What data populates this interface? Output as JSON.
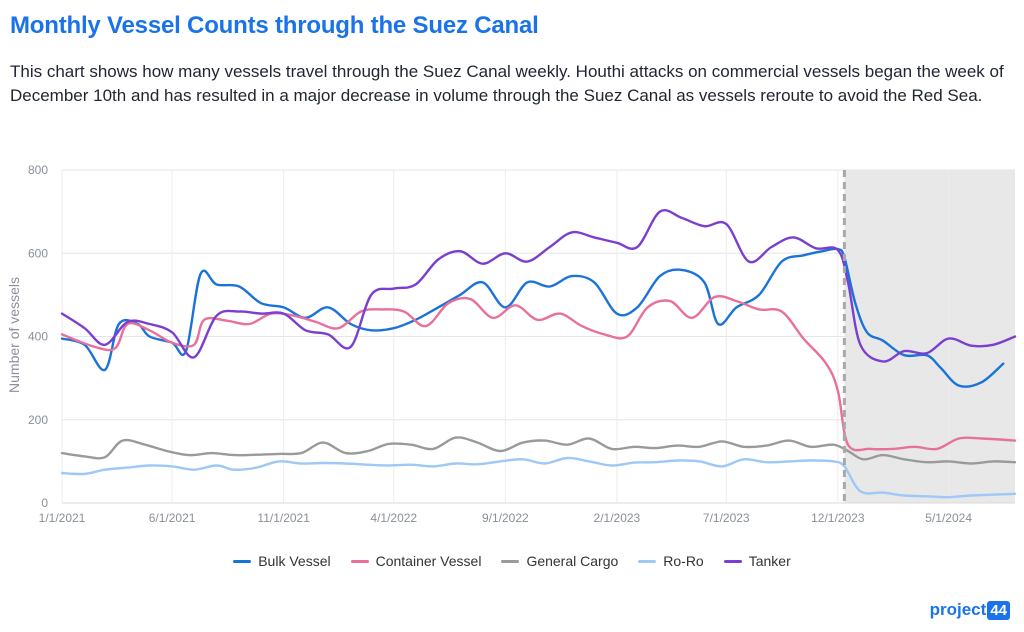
{
  "header": {
    "title": "Monthly Vessel Counts through the Suez Canal",
    "subtitle": "This chart shows how many vessels travel through the Suez Canal weekly. Houthi attacks on commercial vessels began the week of December 10th and has resulted in a major decrease in volume through the Suez Canal as vessels reroute to avoid the Red Sea."
  },
  "logo": {
    "text": "project",
    "badge": "44"
  },
  "chart_data": {
    "type": "line",
    "ylabel": "Number of vessels",
    "xlabel": "",
    "ylim": [
      0,
      800
    ],
    "yticks": [
      0,
      200,
      400,
      600,
      800
    ],
    "xlim": [
      "2021-01-01",
      "2024-07-31"
    ],
    "xticks": [
      "1/1/2021",
      "6/1/2021",
      "11/1/2021",
      "4/1/2022",
      "9/1/2022",
      "2/1/2023",
      "7/1/2023",
      "12/1/2023",
      "5/1/2024"
    ],
    "grid": true,
    "legend_position": "bottom",
    "event_marker": {
      "date": "2023-12-10",
      "style": "dashed vertical line",
      "shaded_after": true
    },
    "shade_color": "#e8e8e8",
    "series": [
      {
        "name": "Bulk Vessel",
        "color": "#1a73d9",
        "points": [
          [
            "2021-01-01",
            395
          ],
          [
            "2021-02-01",
            380
          ],
          [
            "2021-03-01",
            320
          ],
          [
            "2021-03-20",
            430
          ],
          [
            "2021-04-15",
            430
          ],
          [
            "2021-05-01",
            400
          ],
          [
            "2021-06-01",
            385
          ],
          [
            "2021-06-20",
            365
          ],
          [
            "2021-07-10",
            550
          ],
          [
            "2021-08-01",
            525
          ],
          [
            "2021-09-01",
            520
          ],
          [
            "2021-10-01",
            480
          ],
          [
            "2021-11-01",
            470
          ],
          [
            "2021-12-01",
            445
          ],
          [
            "2022-01-01",
            470
          ],
          [
            "2022-02-01",
            430
          ],
          [
            "2022-03-01",
            415
          ],
          [
            "2022-04-01",
            420
          ],
          [
            "2022-05-01",
            440
          ],
          [
            "2022-06-01",
            470
          ],
          [
            "2022-07-01",
            500
          ],
          [
            "2022-08-01",
            530
          ],
          [
            "2022-09-01",
            470
          ],
          [
            "2022-10-01",
            530
          ],
          [
            "2022-11-01",
            520
          ],
          [
            "2022-12-01",
            545
          ],
          [
            "2023-01-01",
            530
          ],
          [
            "2023-02-01",
            455
          ],
          [
            "2023-03-01",
            470
          ],
          [
            "2023-04-01",
            545
          ],
          [
            "2023-05-01",
            560
          ],
          [
            "2023-06-01",
            530
          ],
          [
            "2023-06-20",
            430
          ],
          [
            "2023-07-15",
            470
          ],
          [
            "2023-08-15",
            500
          ],
          [
            "2023-09-15",
            580
          ],
          [
            "2023-10-15",
            595
          ],
          [
            "2023-11-10",
            605
          ],
          [
            "2023-12-01",
            610
          ],
          [
            "2023-12-10",
            590
          ],
          [
            "2023-12-25",
            480
          ],
          [
            "2024-01-10",
            410
          ],
          [
            "2024-02-01",
            390
          ],
          [
            "2024-03-01",
            355
          ],
          [
            "2024-04-01",
            355
          ],
          [
            "2024-04-20",
            325
          ],
          [
            "2024-05-15",
            282
          ],
          [
            "2024-06-15",
            290
          ],
          [
            "2024-07-15",
            335
          ]
        ]
      },
      {
        "name": "Container Vessel",
        "color": "#e8709a",
        "points": [
          [
            "2021-01-01",
            405
          ],
          [
            "2021-02-15",
            375
          ],
          [
            "2021-03-15",
            372
          ],
          [
            "2021-04-01",
            430
          ],
          [
            "2021-05-01",
            415
          ],
          [
            "2021-06-01",
            385
          ],
          [
            "2021-07-01",
            380
          ],
          [
            "2021-07-15",
            440
          ],
          [
            "2021-08-15",
            438
          ],
          [
            "2021-09-15",
            430
          ],
          [
            "2021-10-15",
            455
          ],
          [
            "2021-11-15",
            450
          ],
          [
            "2021-12-15",
            435
          ],
          [
            "2022-01-15",
            420
          ],
          [
            "2022-02-15",
            460
          ],
          [
            "2022-03-15",
            465
          ],
          [
            "2022-04-15",
            460
          ],
          [
            "2022-05-15",
            425
          ],
          [
            "2022-06-15",
            480
          ],
          [
            "2022-07-15",
            490
          ],
          [
            "2022-08-15",
            445
          ],
          [
            "2022-09-15",
            475
          ],
          [
            "2022-10-15",
            440
          ],
          [
            "2022-11-15",
            455
          ],
          [
            "2022-12-15",
            425
          ],
          [
            "2023-01-15",
            405
          ],
          [
            "2023-02-15",
            400
          ],
          [
            "2023-03-15",
            470
          ],
          [
            "2023-04-15",
            485
          ],
          [
            "2023-05-15",
            445
          ],
          [
            "2023-06-15",
            495
          ],
          [
            "2023-07-15",
            485
          ],
          [
            "2023-08-15",
            465
          ],
          [
            "2023-09-15",
            460
          ],
          [
            "2023-10-15",
            395
          ],
          [
            "2023-11-15",
            335
          ],
          [
            "2023-12-01",
            270
          ],
          [
            "2023-12-15",
            140
          ],
          [
            "2024-01-15",
            130
          ],
          [
            "2024-02-15",
            130
          ],
          [
            "2024-03-15",
            135
          ],
          [
            "2024-04-15",
            130
          ],
          [
            "2024-05-15",
            155
          ],
          [
            "2024-06-15",
            155
          ],
          [
            "2024-07-31",
            150
          ]
        ]
      },
      {
        "name": "General Cargo",
        "color": "#9a9a9a",
        "points": [
          [
            "2021-01-01",
            120
          ],
          [
            "2021-02-01",
            112
          ],
          [
            "2021-03-01",
            110
          ],
          [
            "2021-03-25",
            150
          ],
          [
            "2021-04-25",
            140
          ],
          [
            "2021-05-25",
            125
          ],
          [
            "2021-06-25",
            115
          ],
          [
            "2021-07-25",
            120
          ],
          [
            "2021-08-25",
            115
          ],
          [
            "2021-09-25",
            116
          ],
          [
            "2021-10-25",
            118
          ],
          [
            "2021-11-25",
            120
          ],
          [
            "2021-12-25",
            145
          ],
          [
            "2022-01-25",
            120
          ],
          [
            "2022-02-25",
            125
          ],
          [
            "2022-03-25",
            142
          ],
          [
            "2022-04-25",
            140
          ],
          [
            "2022-05-25",
            130
          ],
          [
            "2022-06-25",
            157
          ],
          [
            "2022-07-25",
            145
          ],
          [
            "2022-08-25",
            125
          ],
          [
            "2022-09-25",
            145
          ],
          [
            "2022-10-25",
            150
          ],
          [
            "2022-11-25",
            140
          ],
          [
            "2022-12-25",
            155
          ],
          [
            "2023-01-25",
            130
          ],
          [
            "2023-02-25",
            135
          ],
          [
            "2023-03-25",
            132
          ],
          [
            "2023-04-25",
            138
          ],
          [
            "2023-05-25",
            135
          ],
          [
            "2023-06-25",
            148
          ],
          [
            "2023-07-25",
            135
          ],
          [
            "2023-08-25",
            138
          ],
          [
            "2023-09-25",
            150
          ],
          [
            "2023-10-25",
            135
          ],
          [
            "2023-11-25",
            140
          ],
          [
            "2023-12-15",
            125
          ],
          [
            "2024-01-05",
            105
          ],
          [
            "2024-02-01",
            115
          ],
          [
            "2024-03-01",
            105
          ],
          [
            "2024-04-01",
            98
          ],
          [
            "2024-05-01",
            100
          ],
          [
            "2024-06-01",
            95
          ],
          [
            "2024-07-01",
            100
          ],
          [
            "2024-07-31",
            98
          ]
        ]
      },
      {
        "name": "Ro-Ro",
        "color": "#9ec8f5",
        "points": [
          [
            "2021-01-01",
            72
          ],
          [
            "2021-02-01",
            70
          ],
          [
            "2021-03-01",
            80
          ],
          [
            "2021-04-01",
            85
          ],
          [
            "2021-05-01",
            90
          ],
          [
            "2021-06-01",
            88
          ],
          [
            "2021-07-01",
            80
          ],
          [
            "2021-08-01",
            90
          ],
          [
            "2021-08-25",
            80
          ],
          [
            "2021-09-25",
            85
          ],
          [
            "2021-10-25",
            100
          ],
          [
            "2021-11-25",
            95
          ],
          [
            "2021-12-25",
            96
          ],
          [
            "2022-01-25",
            95
          ],
          [
            "2022-02-25",
            92
          ],
          [
            "2022-03-25",
            90
          ],
          [
            "2022-04-25",
            92
          ],
          [
            "2022-05-25",
            88
          ],
          [
            "2022-06-25",
            95
          ],
          [
            "2022-07-25",
            93
          ],
          [
            "2022-08-25",
            100
          ],
          [
            "2022-09-25",
            105
          ],
          [
            "2022-10-25",
            95
          ],
          [
            "2022-11-25",
            108
          ],
          [
            "2022-12-25",
            100
          ],
          [
            "2023-01-25",
            90
          ],
          [
            "2023-02-25",
            97
          ],
          [
            "2023-03-25",
            98
          ],
          [
            "2023-04-25",
            102
          ],
          [
            "2023-05-25",
            100
          ],
          [
            "2023-06-25",
            88
          ],
          [
            "2023-07-25",
            105
          ],
          [
            "2023-08-25",
            98
          ],
          [
            "2023-09-25",
            100
          ],
          [
            "2023-10-25",
            102
          ],
          [
            "2023-11-25",
            100
          ],
          [
            "2023-12-10",
            88
          ],
          [
            "2024-01-01",
            28
          ],
          [
            "2024-02-01",
            25
          ],
          [
            "2024-03-01",
            18
          ],
          [
            "2024-04-01",
            16
          ],
          [
            "2024-05-01",
            14
          ],
          [
            "2024-06-01",
            18
          ],
          [
            "2024-07-31",
            22
          ]
        ]
      },
      {
        "name": "Tanker",
        "color": "#7b3fd0",
        "points": [
          [
            "2021-01-01",
            455
          ],
          [
            "2021-02-01",
            420
          ],
          [
            "2021-03-01",
            380
          ],
          [
            "2021-04-01",
            435
          ],
          [
            "2021-05-01",
            430
          ],
          [
            "2021-06-01",
            410
          ],
          [
            "2021-07-01",
            350
          ],
          [
            "2021-08-01",
            450
          ],
          [
            "2021-09-01",
            460
          ],
          [
            "2021-10-01",
            455
          ],
          [
            "2021-11-01",
            455
          ],
          [
            "2021-12-01",
            415
          ],
          [
            "2022-01-01",
            405
          ],
          [
            "2022-02-01",
            375
          ],
          [
            "2022-03-01",
            500
          ],
          [
            "2022-04-01",
            515
          ],
          [
            "2022-05-01",
            525
          ],
          [
            "2022-06-01",
            585
          ],
          [
            "2022-07-01",
            605
          ],
          [
            "2022-08-01",
            575
          ],
          [
            "2022-09-01",
            600
          ],
          [
            "2022-10-01",
            580
          ],
          [
            "2022-11-01",
            615
          ],
          [
            "2022-12-01",
            650
          ],
          [
            "2023-01-01",
            638
          ],
          [
            "2023-02-01",
            625
          ],
          [
            "2023-03-01",
            615
          ],
          [
            "2023-04-01",
            700
          ],
          [
            "2023-05-01",
            685
          ],
          [
            "2023-06-01",
            665
          ],
          [
            "2023-07-01",
            670
          ],
          [
            "2023-08-01",
            580
          ],
          [
            "2023-09-01",
            615
          ],
          [
            "2023-10-01",
            638
          ],
          [
            "2023-11-01",
            612
          ],
          [
            "2023-12-01",
            608
          ],
          [
            "2023-12-15",
            530
          ],
          [
            "2024-01-01",
            380
          ],
          [
            "2024-02-01",
            340
          ],
          [
            "2024-03-01",
            365
          ],
          [
            "2024-04-01",
            360
          ],
          [
            "2024-05-01",
            395
          ],
          [
            "2024-06-01",
            378
          ],
          [
            "2024-07-01",
            380
          ],
          [
            "2024-07-31",
            400
          ]
        ]
      }
    ]
  }
}
